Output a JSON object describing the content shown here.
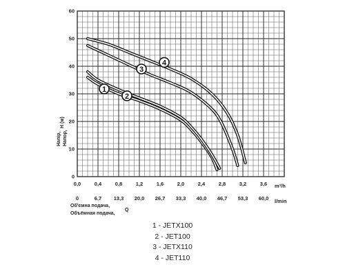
{
  "chart_data": {
    "type": "line",
    "xlabel": {
      "line1": "Об'ємна подача,",
      "line2": "Объёмная подача,",
      "symbol": "Q"
    },
    "ylabel": {
      "line1": "Напір,",
      "line2": "Напор,",
      "symbol": "H (м)"
    },
    "x_unit": "m³/h",
    "x2_unit": "l/min",
    "xlim": [
      0,
      4.0
    ],
    "ylim": [
      0,
      60
    ],
    "grid": true,
    "x_ticks": [
      "0,0",
      "0,4",
      "0,8",
      "1,2",
      "1,6",
      "2,0",
      "2,4",
      "2,8",
      "3,2",
      "3,6"
    ],
    "x2_ticks": [
      "0",
      "6,7",
      "13,3",
      "20,0",
      "26,7",
      "33,3",
      "40,0",
      "46,7",
      "53,3",
      "60,0"
    ],
    "y_ticks": [
      "0",
      "10",
      "20",
      "30",
      "40",
      "50",
      "60"
    ],
    "series": [
      {
        "name": "1",
        "points": [
          [
            0.2,
            36
          ],
          [
            0.4,
            33.5
          ],
          [
            0.8,
            30
          ],
          [
            1.2,
            27.5
          ],
          [
            1.6,
            24.5
          ],
          [
            2.0,
            20.5
          ],
          [
            2.2,
            17
          ],
          [
            2.4,
            12.5
          ],
          [
            2.6,
            7
          ],
          [
            2.7,
            2.5
          ]
        ]
      },
      {
        "name": "2",
        "points": [
          [
            0.2,
            38
          ],
          [
            0.4,
            35
          ],
          [
            0.8,
            31.5
          ],
          [
            1.2,
            28.5
          ],
          [
            1.6,
            25.5
          ],
          [
            2.0,
            21.5
          ],
          [
            2.2,
            18
          ],
          [
            2.4,
            13.5
          ],
          [
            2.6,
            8
          ],
          [
            2.75,
            3
          ]
        ]
      },
      {
        "name": "3",
        "points": [
          [
            0.2,
            47.5
          ],
          [
            0.6,
            44
          ],
          [
            1.0,
            40.5
          ],
          [
            1.4,
            37
          ],
          [
            1.8,
            34
          ],
          [
            2.2,
            30.5
          ],
          [
            2.6,
            24.5
          ],
          [
            2.8,
            19
          ],
          [
            3.0,
            10
          ],
          [
            3.1,
            4
          ]
        ]
      },
      {
        "name": "4",
        "points": [
          [
            0.2,
            50
          ],
          [
            0.6,
            48
          ],
          [
            1.0,
            45
          ],
          [
            1.4,
            42
          ],
          [
            1.8,
            39
          ],
          [
            2.2,
            35.5
          ],
          [
            2.6,
            30
          ],
          [
            2.9,
            23
          ],
          [
            3.1,
            15
          ],
          [
            3.25,
            5
          ]
        ]
      }
    ],
    "curve_markers": [
      {
        "label": "1",
        "x": 0.52,
        "y": 31.8
      },
      {
        "label": "2",
        "x": 0.96,
        "y": 29.3
      },
      {
        "label": "3",
        "x": 1.24,
        "y": 39.0
      },
      {
        "label": "4",
        "x": 1.68,
        "y": 41.4
      }
    ],
    "legend": [
      "1 - JETX100",
      "2 - JET100",
      "3 - JETX110",
      "4 - JET110"
    ]
  }
}
